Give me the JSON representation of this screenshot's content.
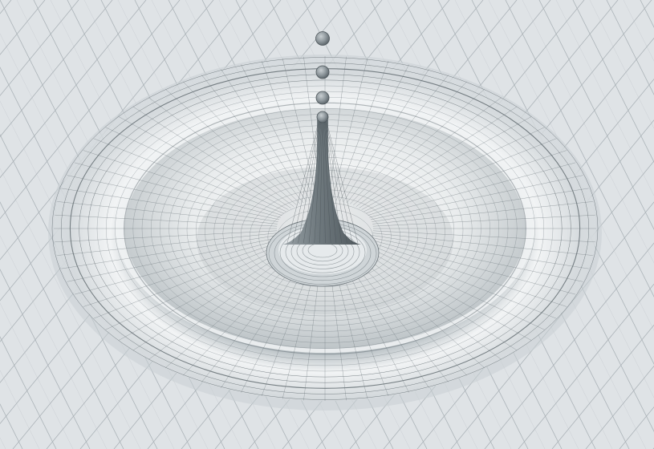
{
  "scene": {
    "subject": "wireframe-droplet-splash-surface",
    "colors": {
      "background": "#dfe3e6",
      "grid_line": "#9aa3a9",
      "mesh_line": "#5c666c",
      "surface_light": "#f4f6f7",
      "surface_shadow": "#9ea7ac",
      "droplet": "#8d969b"
    },
    "droplet_count": 4
  }
}
